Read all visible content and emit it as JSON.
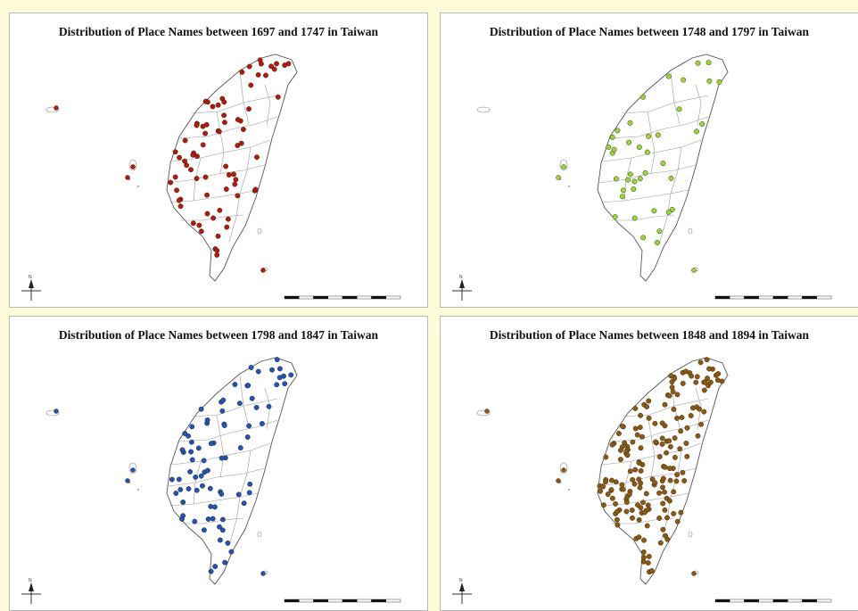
{
  "panels": [
    {
      "title": "Distribution of Place Names between 1697 and 1747 in Taiwan",
      "color": "#b01a12",
      "density": "sparse",
      "point_count": 75
    },
    {
      "title": "Distribution of Place Names between 1748 and 1797 in Taiwan",
      "color": "#98d83a",
      "density": "very-sparse",
      "point_count": 40
    },
    {
      "title": "Distribution of Place Names between 1798 and 1847 in Taiwan",
      "color": "#1f55b8",
      "density": "sparse",
      "point_count": 80
    },
    {
      "title": "Distribution of Place Names between 1848 and 1894 in Taiwan",
      "color": "#8a5a14",
      "density": "dense",
      "point_count": 180
    }
  ],
  "map_elements": {
    "compass": "north-arrow-icon",
    "scale_bar": "scale-bar"
  }
}
